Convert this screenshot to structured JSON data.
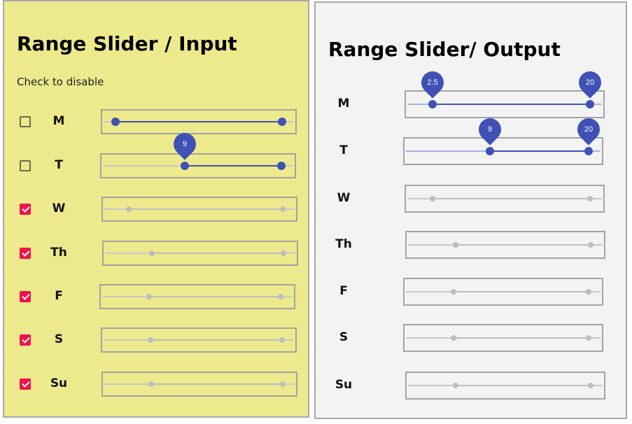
{
  "left_panel": {
    "title": "Range Slider / Input",
    "hint": "Check to disable",
    "rows": [
      {
        "day": "M",
        "checked": false,
        "low": 1,
        "high": 20,
        "label": ""
      },
      {
        "day": "T",
        "checked": false,
        "low": 9,
        "high": 20,
        "label": "9"
      },
      {
        "day": "W",
        "checked": true,
        "low": 2.5,
        "high": 20,
        "label": ""
      },
      {
        "day": "Th",
        "checked": true,
        "low": 5,
        "high": 20,
        "label": ""
      },
      {
        "day": "F",
        "checked": true,
        "low": 5,
        "high": 20,
        "label": ""
      },
      {
        "day": "S",
        "checked": true,
        "low": 5,
        "high": 20,
        "label": ""
      },
      {
        "day": "Su",
        "checked": true,
        "low": 5,
        "high": 20,
        "label": ""
      }
    ]
  },
  "right_panel": {
    "title": "Range Slider/ Output",
    "rows": [
      {
        "day": "M",
        "active": true,
        "low": 2.5,
        "high": 20,
        "low_label": "2.5",
        "high_label": "20"
      },
      {
        "day": "T",
        "active": true,
        "low": 9,
        "high": 20,
        "low_label": "9",
        "high_label": "20"
      },
      {
        "day": "W",
        "active": false,
        "low": 2.5,
        "high": 20,
        "low_label": "",
        "high_label": ""
      },
      {
        "day": "Th",
        "active": false,
        "low": 5,
        "high": 20,
        "low_label": "",
        "high_label": ""
      },
      {
        "day": "F",
        "active": false,
        "low": 5,
        "high": 20,
        "low_label": "",
        "high_label": ""
      },
      {
        "day": "S",
        "active": false,
        "low": 5,
        "high": 20,
        "low_label": "",
        "high_label": ""
      },
      {
        "day": "Su",
        "active": false,
        "low": 5,
        "high": 20,
        "low_label": "",
        "high_label": ""
      }
    ]
  },
  "slider_range": [
    0,
    21
  ],
  "colors": {
    "left_background": "#ecea8c",
    "right_background": "#f3f3f3",
    "slider_active": "#3f51b5",
    "slider_disabled": "#bdbdbd",
    "checkbox_checked": "#f0124e"
  }
}
